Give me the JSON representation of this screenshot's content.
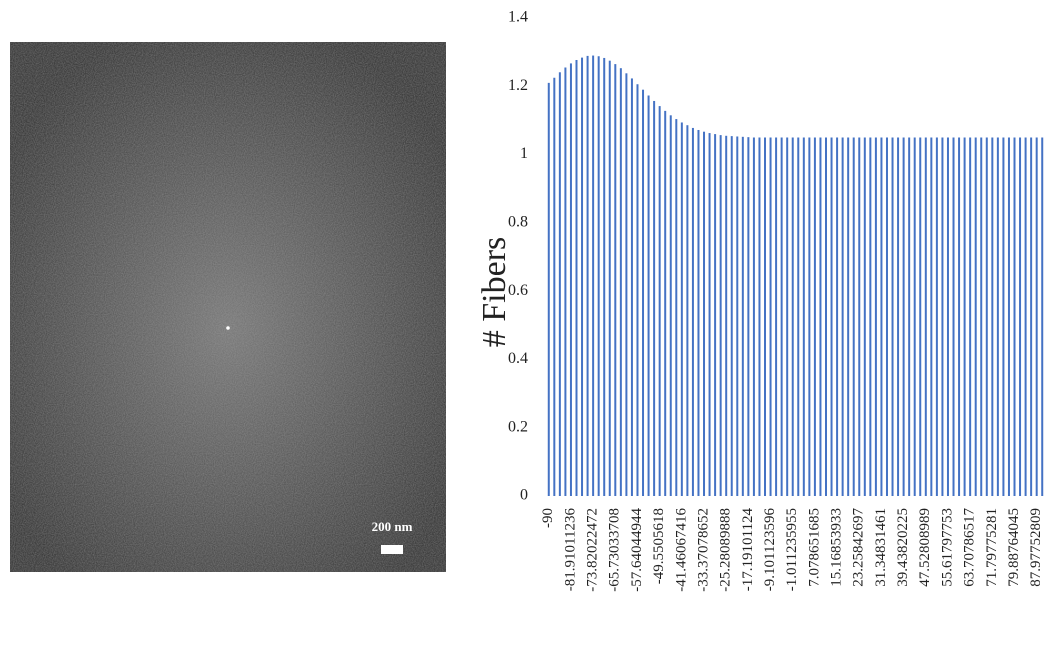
{
  "image": {
    "scale_bar_label": "200 nm"
  },
  "chart_data": {
    "type": "bar",
    "y_label": "# Fibers",
    "categories": [
      "-90",
      null,
      null,
      null,
      "-81.91011236",
      null,
      null,
      null,
      "-73.82022472",
      null,
      null,
      null,
      "-65.73033708",
      null,
      null,
      null,
      "-57.64044944",
      null,
      null,
      null,
      "-49.5505618",
      null,
      null,
      null,
      "-41.46067416",
      null,
      null,
      null,
      "-33.37078652",
      null,
      null,
      null,
      "-25.28089888",
      null,
      null,
      null,
      "-17.19101124",
      null,
      null,
      null,
      "-9.101123596",
      null,
      null,
      null,
      "-1.011235955",
      null,
      null,
      null,
      "7.078651685",
      null,
      null,
      null,
      "15.16853933",
      null,
      null,
      null,
      "23.25842697",
      null,
      null,
      null,
      "31.34831461",
      null,
      null,
      null,
      "39.43820225",
      null,
      null,
      null,
      "47.52808989",
      null,
      null,
      null,
      "55.61797753",
      null,
      null,
      null,
      "63.70786517",
      null,
      null,
      null,
      "71.79775281",
      null,
      null,
      null,
      "79.88764045",
      null,
      null,
      null,
      "87.97752809",
      null
    ],
    "values": [
      1.21,
      1.225,
      1.241,
      1.255,
      1.267,
      1.277,
      1.284,
      1.289,
      1.29,
      1.288,
      1.283,
      1.275,
      1.265,
      1.253,
      1.238,
      1.223,
      1.206,
      1.19,
      1.173,
      1.157,
      1.142,
      1.128,
      1.115,
      1.104,
      1.094,
      1.086,
      1.078,
      1.072,
      1.067,
      1.063,
      1.06,
      1.057,
      1.055,
      1.054,
      1.053,
      1.052,
      1.051,
      1.05,
      1.05,
      1.05,
      1.05,
      1.05,
      1.05,
      1.05,
      1.05,
      1.05,
      1.05,
      1.05,
      1.05,
      1.05,
      1.05,
      1.05,
      1.05,
      1.05,
      1.05,
      1.05,
      1.05,
      1.05,
      1.05,
      1.05,
      1.05,
      1.05,
      1.05,
      1.05,
      1.05,
      1.05,
      1.05,
      1.05,
      1.05,
      1.05,
      1.05,
      1.05,
      1.05,
      1.05,
      1.05,
      1.05,
      1.05,
      1.05,
      1.05,
      1.05,
      1.05,
      1.05,
      1.05,
      1.05,
      1.05,
      1.05,
      1.05,
      1.05,
      1.05,
      1.05
    ],
    "color": "#4472c4",
    "ylim": [
      0,
      1.4
    ],
    "yticks": [
      0,
      0.2,
      0.4,
      0.6,
      0.8,
      1,
      1.2,
      1.4
    ],
    "grid": false
  }
}
